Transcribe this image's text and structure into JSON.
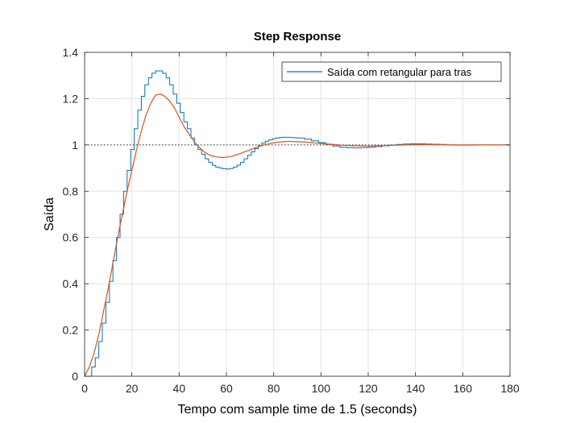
{
  "chart_data": {
    "type": "line",
    "title": "Step Response",
    "xlabel": "Tempo com sample time de 1.5 (seconds)",
    "ylabel": "Saída",
    "xlim": [
      0,
      180
    ],
    "ylim": [
      0,
      1.4
    ],
    "xticks": [
      "0",
      "20",
      "40",
      "60",
      "80",
      "100",
      "120",
      "140",
      "160",
      "180"
    ],
    "yticks": [
      "0",
      "0.2",
      "0.4",
      "0.6",
      "0.8",
      "1",
      "1.2",
      "1.4"
    ],
    "grid": true,
    "legend": {
      "position": "top-right",
      "entries": [
        "Saída com retangular para tras"
      ]
    },
    "reference_line": {
      "y": 1,
      "style": "dotted",
      "color": "#333333"
    },
    "series": [
      {
        "name": "Saída com retangular para tras",
        "color": "#0072BD",
        "style": "stairs",
        "step": 1.5,
        "x": [
          0,
          1.5,
          3,
          4.5,
          6,
          7.5,
          9,
          10.5,
          12,
          13.5,
          15,
          16.5,
          18,
          19.5,
          21,
          22.5,
          24,
          25.5,
          27,
          28.5,
          30,
          31.5,
          33,
          34.5,
          36,
          37.5,
          39,
          40.5,
          42,
          43.5,
          45,
          46.5,
          48,
          49.5,
          51,
          52.5,
          54,
          55.5,
          57,
          58.5,
          60,
          61.5,
          63,
          64.5,
          66,
          67.5,
          69,
          70.5,
          72,
          73.5,
          75,
          76.5,
          78,
          79.5,
          81,
          82.5,
          84,
          85.5,
          87,
          88.5,
          90,
          93,
          96,
          99,
          102,
          105,
          108,
          111,
          114,
          117,
          120,
          123,
          126,
          129,
          132,
          135,
          138,
          141,
          144,
          147,
          150,
          153,
          156,
          159,
          162,
          165,
          168,
          171,
          174,
          177,
          180
        ],
        "y": [
          0,
          0,
          0.04,
          0.08,
          0.15,
          0.23,
          0.32,
          0.41,
          0.5,
          0.6,
          0.7,
          0.8,
          0.89,
          0.98,
          1.07,
          1.15,
          1.21,
          1.26,
          1.29,
          1.31,
          1.32,
          1.32,
          1.31,
          1.29,
          1.26,
          1.22,
          1.18,
          1.14,
          1.1,
          1.07,
          1.03,
          1.0,
          0.98,
          0.96,
          0.94,
          0.925,
          0.912,
          0.904,
          0.9,
          0.897,
          0.896,
          0.898,
          0.904,
          0.913,
          0.925,
          0.94,
          0.955,
          0.97,
          0.984,
          0.997,
          1.008,
          1.016,
          1.022,
          1.027,
          1.03,
          1.032,
          1.033,
          1.033,
          1.032,
          1.031,
          1.03,
          1.025,
          1.018,
          1.01,
          1.002,
          0.995,
          0.99,
          0.988,
          0.987,
          0.988,
          0.99,
          0.993,
          0.996,
          0.999,
          1.002,
          1.004,
          1.005,
          1.005,
          1.004,
          1.003,
          1.002,
          1.0,
          0.999,
          0.999,
          0.999,
          1.0,
          1.0,
          1.0,
          1.0,
          1.0,
          1.0
        ]
      },
      {
        "name": "",
        "color": "#D95319",
        "style": "line",
        "x": [
          0,
          2,
          4,
          6,
          8,
          10,
          12,
          14,
          16,
          18,
          20,
          22,
          24,
          26,
          28,
          30,
          32,
          34,
          36,
          38,
          40,
          42,
          44,
          46,
          48,
          50,
          52,
          54,
          56,
          58,
          60,
          62,
          64,
          66,
          68,
          70,
          72,
          74,
          76,
          78,
          80,
          82,
          84,
          86,
          88,
          90,
          92,
          94,
          96,
          98,
          100,
          105,
          110,
          115,
          120,
          125,
          130,
          135,
          140,
          145,
          150,
          155,
          160,
          165,
          170,
          175,
          180
        ],
        "y": [
          0,
          0.04,
          0.1,
          0.18,
          0.28,
          0.38,
          0.49,
          0.6,
          0.7,
          0.8,
          0.89,
          0.98,
          1.06,
          1.13,
          1.18,
          1.215,
          1.22,
          1.21,
          1.19,
          1.16,
          1.12,
          1.08,
          1.05,
          1.02,
          0.995,
          0.975,
          0.96,
          0.952,
          0.948,
          0.946,
          0.947,
          0.95,
          0.956,
          0.963,
          0.971,
          0.979,
          0.987,
          0.994,
          1.0,
          1.005,
          1.009,
          1.012,
          1.014,
          1.015,
          1.015,
          1.014,
          1.013,
          1.012,
          1.01,
          1.008,
          1.006,
          1.002,
          0.998,
          0.996,
          0.995,
          0.996,
          0.998,
          1.0,
          1.001,
          1.002,
          1.001,
          1.0,
          1.0,
          1.0,
          1.0,
          1.0,
          1.0
        ]
      }
    ]
  }
}
